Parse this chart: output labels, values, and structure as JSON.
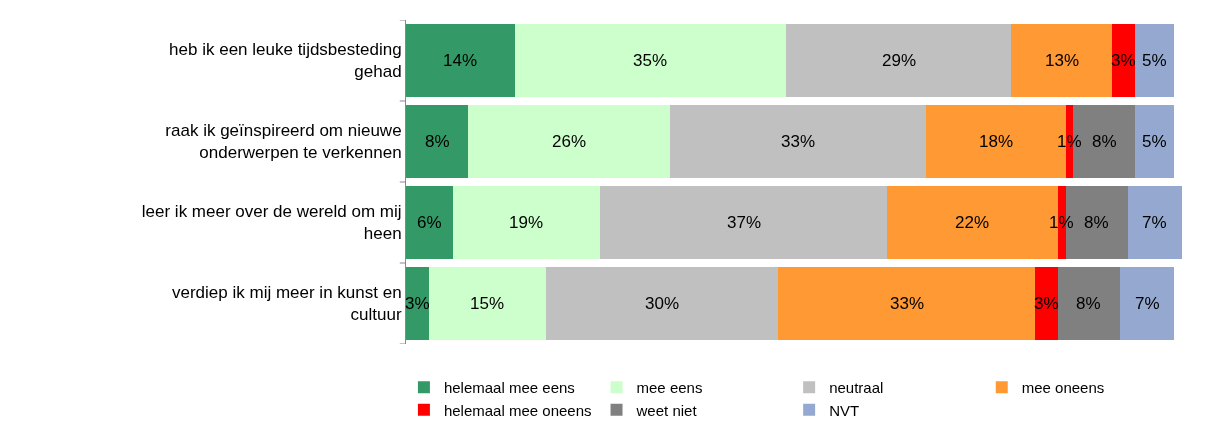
{
  "chart_data": {
    "type": "bar",
    "orientation": "horizontal",
    "stacked": true,
    "legend": "bottom",
    "categories": [
      "heb ik een leuke tijdsbesteding gehad",
      "raak ik geïnspireerd om nieuwe onderwerpen te verkennen",
      "leer ik meer over de wereld om mij heen",
      "verdiep ik mij meer in kunst en cultuur"
    ],
    "series": [
      {
        "name": "helemaal mee eens",
        "color": "#339966",
        "values": [
          14,
          8,
          6,
          3
        ],
        "value_labels": [
          "14%",
          "8%",
          "6%",
          "3%"
        ]
      },
      {
        "name": "mee eens",
        "color": "#ccffcc",
        "values": [
          35,
          26,
          19,
          15
        ],
        "value_labels": [
          "35%",
          "26%",
          "19%",
          "15%"
        ]
      },
      {
        "name": "neutraal",
        "color": "#c0c0c0",
        "values": [
          29,
          33,
          37,
          30
        ],
        "value_labels": [
          "29%",
          "33%",
          "37%",
          "30%"
        ]
      },
      {
        "name": "mee oneens",
        "color": "#ff9933",
        "values": [
          13,
          18,
          22,
          33
        ],
        "value_labels": [
          "13%",
          "18%",
          "22%",
          "33%"
        ]
      },
      {
        "name": "helemaal mee oneens",
        "color": "#ff0000",
        "values": [
          3,
          1,
          1,
          3
        ],
        "value_labels": [
          "3%",
          "1%",
          "1%",
          "3%"
        ]
      },
      {
        "name": "weet niet",
        "color": "#808080",
        "values": [
          0,
          8,
          8,
          8
        ],
        "value_labels": [
          null,
          "8%",
          "8%",
          "8%"
        ]
      },
      {
        "name": "NVT",
        "color": "#95a9d0",
        "values": [
          5,
          5,
          7,
          7
        ],
        "value_labels": [
          "5%",
          "5%",
          "7%",
          "7%"
        ]
      }
    ]
  }
}
